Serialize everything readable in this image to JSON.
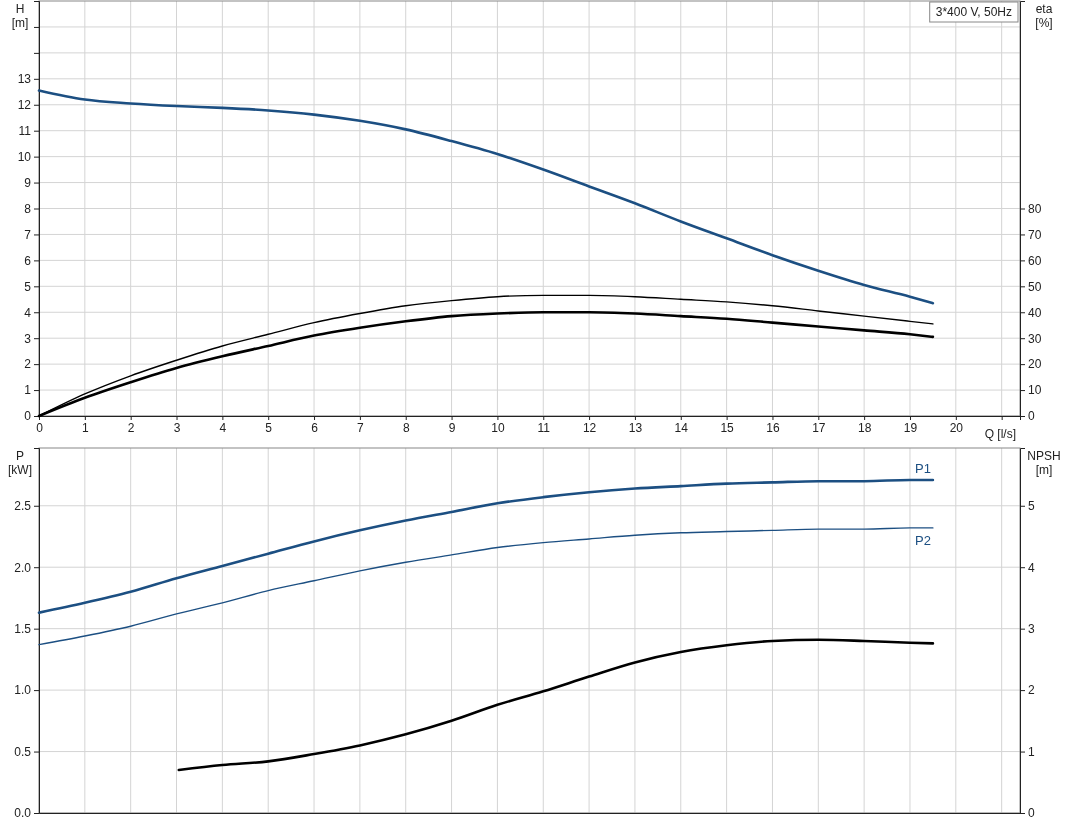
{
  "chart_data": [
    {
      "type": "line",
      "annotations": [
        "3*400 V, 50Hz"
      ],
      "xlabel": "Q [l/s]",
      "ylabel": "H [m]",
      "y2label": "eta [%]",
      "grid": true,
      "marker": "none",
      "line_style": "solid",
      "x": [
        0,
        1,
        2,
        3,
        4,
        5,
        6,
        7,
        8,
        9,
        10,
        11,
        12,
        13,
        14,
        15,
        16,
        17,
        18,
        19,
        19.5
      ],
      "xlim": [
        0,
        21.4
      ],
      "xticks": [
        0,
        1,
        2,
        3,
        4,
        5,
        6,
        7,
        8,
        9,
        10,
        11,
        12,
        13,
        14,
        15,
        16,
        17,
        18,
        19,
        20,
        {
          "value": 21,
          "label": null
        }
      ],
      "ylim": [
        0,
        16
      ],
      "yticks": [
        0,
        1,
        2,
        3,
        4,
        5,
        6,
        7,
        8,
        9,
        10,
        11,
        12,
        13,
        {
          "value": 14,
          "label": null
        },
        {
          "value": 15,
          "label": null
        }
      ],
      "y2lim": [
        0,
        160
      ],
      "y2ticks": [
        0,
        10,
        20,
        30,
        40,
        50,
        60,
        70,
        80
      ],
      "series": [
        {
          "color": "#1c4f82",
          "values": [
            12.55,
            12.2,
            12.05,
            11.95,
            11.88,
            11.78,
            11.62,
            11.38,
            11.05,
            10.6,
            10.1,
            9.5,
            8.85,
            8.2,
            7.5,
            6.85,
            6.2,
            5.6,
            5.05,
            4.6,
            4.35
          ]
        },
        {
          "color": "#000000",
          "axis": "y2",
          "values": [
            0,
            8.5,
            15.5,
            21.5,
            27,
            31.5,
            36,
            39.5,
            42.5,
            44.5,
            46,
            46.5,
            46.5,
            46,
            45,
            44,
            42.5,
            40.5,
            38.5,
            36.5,
            35.5
          ]
        },
        {
          "color": "#000000",
          "axis": "y2",
          "values": [
            0,
            7,
            13,
            18.5,
            23,
            27,
            31,
            34,
            36.5,
            38.5,
            39.5,
            40,
            40,
            39.5,
            38.5,
            37.5,
            36,
            34.5,
            33,
            31.5,
            30.5
          ]
        }
      ]
    },
    {
      "type": "line",
      "ylabel": "P [kW]",
      "y2label": "NPSH [m]",
      "grid": true,
      "marker": "none",
      "line_style": "solid",
      "tick_labels": "y",
      "x": [
        0,
        1,
        2,
        3,
        4,
        5,
        6,
        7,
        8,
        9,
        10,
        11,
        12,
        13,
        14,
        15,
        16,
        17,
        18,
        19,
        19.5
      ],
      "xlim": [
        0,
        21.4
      ],
      "xticks": [
        0,
        1,
        2,
        3,
        4,
        5,
        6,
        7,
        8,
        9,
        10,
        11,
        12,
        13,
        14,
        15,
        16,
        17,
        18,
        19,
        20,
        21
      ],
      "ylim": [
        0,
        2.97
      ],
      "yticks": [
        {
          "value": 0,
          "label": "0.0"
        },
        {
          "value": 0.5,
          "label": "0.5"
        },
        {
          "value": 1,
          "label": "1.0"
        },
        {
          "value": 1.5,
          "label": "1.5"
        },
        {
          "value": 2,
          "label": "2.0"
        },
        {
          "value": 2.5,
          "label": "2.5"
        }
      ],
      "y2lim": [
        0,
        5.94
      ],
      "y2ticks": [
        0,
        1,
        2,
        3,
        4,
        5
      ],
      "series": [
        {
          "name": "P1",
          "color": "#1c4f82",
          "values": [
            1.63,
            1.71,
            1.8,
            1.91,
            2.01,
            2.11,
            2.21,
            2.3,
            2.38,
            2.45,
            2.52,
            2.57,
            2.61,
            2.64,
            2.66,
            2.68,
            2.69,
            2.7,
            2.7,
            2.71,
            2.71
          ]
        },
        {
          "name": "P2",
          "color": "#1c4f82",
          "values": [
            1.37,
            1.44,
            1.52,
            1.62,
            1.71,
            1.81,
            1.89,
            1.97,
            2.04,
            2.1,
            2.16,
            2.2,
            2.23,
            2.26,
            2.28,
            2.29,
            2.3,
            2.31,
            2.31,
            2.32,
            2.32
          ]
        },
        {
          "color": "#000000",
          "axis": "y2",
          "x": [
            3.05,
            4,
            5,
            6,
            7,
            8,
            9,
            10,
            11,
            12,
            13,
            14,
            15,
            16,
            17,
            18,
            19,
            19.5
          ],
          "values": [
            0.7,
            0.78,
            0.84,
            0.96,
            1.1,
            1.28,
            1.5,
            1.76,
            1.98,
            2.22,
            2.45,
            2.62,
            2.73,
            2.8,
            2.82,
            2.8,
            2.77,
            2.76
          ]
        }
      ]
    }
  ]
}
